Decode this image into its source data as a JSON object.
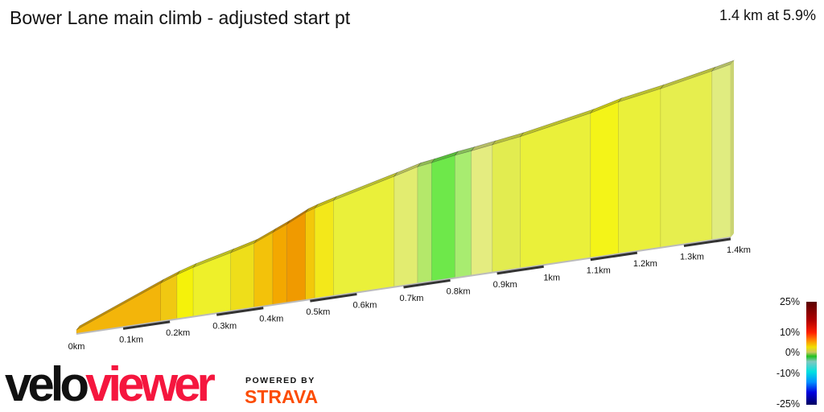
{
  "header": {
    "title": "Bower Lane main climb - adjusted start pt",
    "summary": "1.4 km at 5.9%"
  },
  "branding": {
    "logo_part1": "velo",
    "logo_part2": "viewer",
    "powered_by": "POWERED BY",
    "strava": "STRAVA"
  },
  "legend": {
    "labels": [
      "25%",
      "10%",
      "0%",
      "-10%",
      "-25%"
    ],
    "colors": [
      "#5a0000",
      "#c00000",
      "#ff2000",
      "#ff8c00",
      "#f0e000",
      "#c8c860",
      "#20c020",
      "#80c0c0",
      "#00e0e0",
      "#0090ff",
      "#0000e0",
      "#000060"
    ]
  },
  "chart_data": {
    "type": "area",
    "title": "Bower Lane main climb - adjusted start pt",
    "xlabel": "",
    "ylabel": "",
    "x_ticks": [
      "0km",
      "0.1km",
      "0.2km",
      "0.3km",
      "0.4km",
      "0.5km",
      "0.6km",
      "0.7km",
      "0.8km",
      "0.9km",
      "1km",
      "1.1km",
      "1.2km",
      "1.3km",
      "1.4km"
    ],
    "xlim": [
      0,
      1.4
    ],
    "segments": [
      {
        "end_km": 0.18,
        "elev_end_m": 17,
        "color": "#f3b50a"
      },
      {
        "end_km": 0.215,
        "elev_end_m": 20,
        "color": "#f0c812"
      },
      {
        "end_km": 0.25,
        "elev_end_m": 22.5,
        "color": "#f5f20a"
      },
      {
        "end_km": 0.33,
        "elev_end_m": 27,
        "color": "#eef02a"
      },
      {
        "end_km": 0.38,
        "elev_end_m": 30,
        "color": "#eede1a"
      },
      {
        "end_km": 0.42,
        "elev_end_m": 34,
        "color": "#f3c20a"
      },
      {
        "end_km": 0.45,
        "elev_end_m": 37,
        "color": "#f3a800"
      },
      {
        "end_km": 0.49,
        "elev_end_m": 41.5,
        "color": "#f09a00"
      },
      {
        "end_km": 0.51,
        "elev_end_m": 43,
        "color": "#f3c80a"
      },
      {
        "end_km": 0.55,
        "elev_end_m": 45.5,
        "color": "#f3e81a"
      },
      {
        "end_km": 0.68,
        "elev_end_m": 53,
        "color": "#eaf03a"
      },
      {
        "end_km": 0.73,
        "elev_end_m": 56,
        "color": "#e2ec70"
      },
      {
        "end_km": 0.76,
        "elev_end_m": 57,
        "color": "#b4e86a"
      },
      {
        "end_km": 0.81,
        "elev_end_m": 59,
        "color": "#6ee84a"
      },
      {
        "end_km": 0.845,
        "elev_end_m": 60,
        "color": "#a8ec70"
      },
      {
        "end_km": 0.89,
        "elev_end_m": 61.5,
        "color": "#e4ec80"
      },
      {
        "end_km": 0.95,
        "elev_end_m": 63.5,
        "color": "#e2ec50"
      },
      {
        "end_km": 1.1,
        "elev_end_m": 70,
        "color": "#eaf03a"
      },
      {
        "end_km": 1.16,
        "elev_end_m": 73.5,
        "color": "#f4f418"
      },
      {
        "end_km": 1.25,
        "elev_end_m": 77,
        "color": "#eaf03a"
      },
      {
        "end_km": 1.36,
        "elev_end_m": 82,
        "color": "#e6ee4e"
      },
      {
        "end_km": 1.4,
        "elev_end_m": 84,
        "color": "#e0ec80"
      }
    ]
  }
}
